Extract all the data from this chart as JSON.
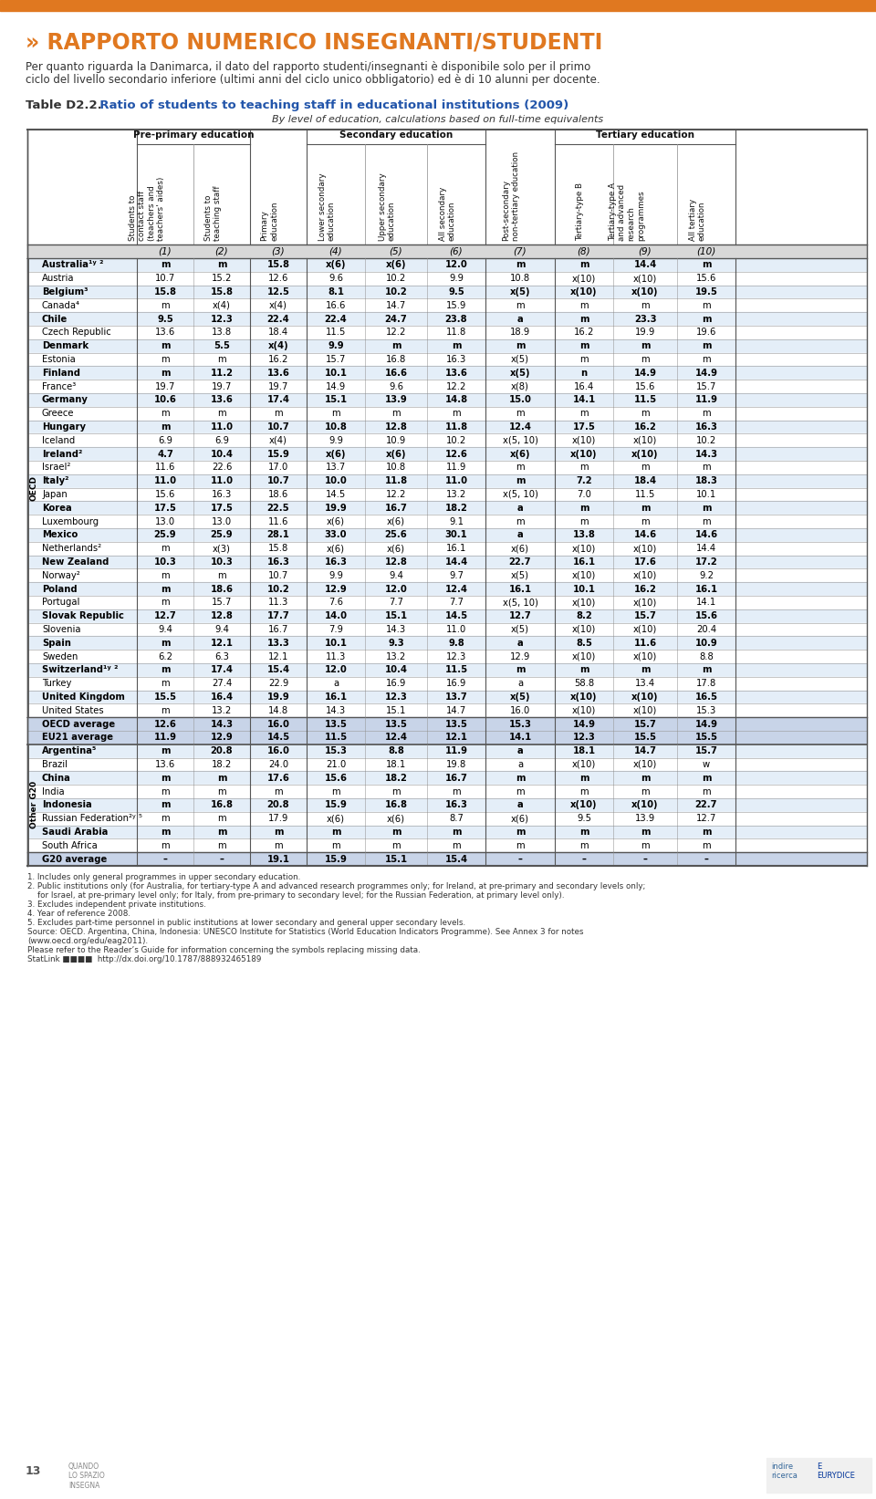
{
  "title_prefix": "Table D2.2.",
  "title_main": "  Ratio of students to teaching staff in educational institutions (2009)",
  "subtitle": "By level of education, calculations based on full-time equivalents",
  "col_headers_rotated": [
    "Students to\ncontact staff\n(teachers and\nteachers' aides)",
    "Students to\nteaching staff",
    "Primary\neducation",
    "Lower secondary\neducation",
    "Upper secondary\neducation",
    "All secondary\neducation",
    "Post-secondary\nnon-tertiary education",
    "Tertiary-type B",
    "Tertiary-type A\nand advanced\nresearch\nprogrammes",
    "All tertiary\neducation"
  ],
  "col_numbers": [
    "(1)",
    "(2)",
    "(3)",
    "(4)",
    "(5)",
    "(6)",
    "(7)",
    "(8)",
    "(9)",
    "(10)"
  ],
  "countries_oecd": [
    [
      "Australia¹ʸ ²",
      "m",
      "m",
      "15.8",
      "x(6)",
      "x(6)",
      "12.0",
      "m",
      "m",
      "14.4",
      "m"
    ],
    [
      "Austria",
      "10.7",
      "15.2",
      "12.6",
      "9.6",
      "10.2",
      "9.9",
      "10.8",
      "x(10)",
      "x(10)",
      "15.6"
    ],
    [
      "Belgium³",
      "15.8",
      "15.8",
      "12.5",
      "8.1",
      "10.2",
      "9.5",
      "x(5)",
      "x(10)",
      "x(10)",
      "19.5"
    ],
    [
      "Canada⁴",
      "m",
      "x(4)",
      "x(4)",
      "16.6",
      "14.7",
      "15.9",
      "m",
      "m",
      "m",
      "m"
    ],
    [
      "Chile",
      "9.5",
      "12.3",
      "22.4",
      "22.4",
      "24.7",
      "23.8",
      "a",
      "m",
      "23.3",
      "m"
    ],
    [
      "Czech Republic",
      "13.6",
      "13.8",
      "18.4",
      "11.5",
      "12.2",
      "11.8",
      "18.9",
      "16.2",
      "19.9",
      "19.6"
    ],
    [
      "Denmark",
      "m",
      "5.5",
      "x(4)",
      "9.9",
      "m",
      "m",
      "m",
      "m",
      "m",
      "m"
    ],
    [
      "Estonia",
      "m",
      "m",
      "16.2",
      "15.7",
      "16.8",
      "16.3",
      "x(5)",
      "m",
      "m",
      "m"
    ],
    [
      "Finland",
      "m",
      "11.2",
      "13.6",
      "10.1",
      "16.6",
      "13.6",
      "x(5)",
      "n",
      "14.9",
      "14.9"
    ],
    [
      "France³",
      "19.7",
      "19.7",
      "19.7",
      "14.9",
      "9.6",
      "12.2",
      "x(8)",
      "16.4",
      "15.6",
      "15.7"
    ],
    [
      "Germany",
      "10.6",
      "13.6",
      "17.4",
      "15.1",
      "13.9",
      "14.8",
      "15.0",
      "14.1",
      "11.5",
      "11.9"
    ],
    [
      "Greece",
      "m",
      "m",
      "m",
      "m",
      "m",
      "m",
      "m",
      "m",
      "m",
      "m"
    ],
    [
      "Hungary",
      "m",
      "11.0",
      "10.7",
      "10.8",
      "12.8",
      "11.8",
      "12.4",
      "17.5",
      "16.2",
      "16.3"
    ],
    [
      "Iceland",
      "6.9",
      "6.9",
      "x(4)",
      "9.9",
      "10.9",
      "10.2",
      "x(5, 10)",
      "x(10)",
      "x(10)",
      "10.2"
    ],
    [
      "Ireland²",
      "4.7",
      "10.4",
      "15.9",
      "x(6)",
      "x(6)",
      "12.6",
      "x(6)",
      "x(10)",
      "x(10)",
      "14.3"
    ],
    [
      "Israel²",
      "11.6",
      "22.6",
      "17.0",
      "13.7",
      "10.8",
      "11.9",
      "m",
      "m",
      "m",
      "m"
    ],
    [
      "Italy²",
      "11.0",
      "11.0",
      "10.7",
      "10.0",
      "11.8",
      "11.0",
      "m",
      "7.2",
      "18.4",
      "18.3"
    ],
    [
      "Japan",
      "15.6",
      "16.3",
      "18.6",
      "14.5",
      "12.2",
      "13.2",
      "x(5, 10)",
      "7.0",
      "11.5",
      "10.1"
    ],
    [
      "Korea",
      "17.5",
      "17.5",
      "22.5",
      "19.9",
      "16.7",
      "18.2",
      "a",
      "m",
      "m",
      "m"
    ],
    [
      "Luxembourg",
      "13.0",
      "13.0",
      "11.6",
      "x(6)",
      "x(6)",
      "9.1",
      "m",
      "m",
      "m",
      "m"
    ],
    [
      "Mexico",
      "25.9",
      "25.9",
      "28.1",
      "33.0",
      "25.6",
      "30.1",
      "a",
      "13.8",
      "14.6",
      "14.6"
    ],
    [
      "Netherlands²",
      "m",
      "x(3)",
      "15.8",
      "x(6)",
      "x(6)",
      "16.1",
      "x(6)",
      "x(10)",
      "x(10)",
      "14.4"
    ],
    [
      "New Zealand",
      "10.3",
      "10.3",
      "16.3",
      "16.3",
      "12.8",
      "14.4",
      "22.7",
      "16.1",
      "17.6",
      "17.2"
    ],
    [
      "Norway²",
      "m",
      "m",
      "10.7",
      "9.9",
      "9.4",
      "9.7",
      "x(5)",
      "x(10)",
      "x(10)",
      "9.2"
    ],
    [
      "Poland",
      "m",
      "18.6",
      "10.2",
      "12.9",
      "12.0",
      "12.4",
      "16.1",
      "10.1",
      "16.2",
      "16.1"
    ],
    [
      "Portugal",
      "m",
      "15.7",
      "11.3",
      "7.6",
      "7.7",
      "7.7",
      "x(5, 10)",
      "x(10)",
      "x(10)",
      "14.1"
    ],
    [
      "Slovak Republic",
      "12.7",
      "12.8",
      "17.7",
      "14.0",
      "15.1",
      "14.5",
      "12.7",
      "8.2",
      "15.7",
      "15.6"
    ],
    [
      "Slovenia",
      "9.4",
      "9.4",
      "16.7",
      "7.9",
      "14.3",
      "11.0",
      "x(5)",
      "x(10)",
      "x(10)",
      "20.4"
    ],
    [
      "Spain",
      "m",
      "12.1",
      "13.3",
      "10.1",
      "9.3",
      "9.8",
      "a",
      "8.5",
      "11.6",
      "10.9"
    ],
    [
      "Sweden",
      "6.2",
      "6.3",
      "12.1",
      "11.3",
      "13.2",
      "12.3",
      "12.9",
      "x(10)",
      "x(10)",
      "8.8"
    ],
    [
      "Switzerland¹ʸ ²",
      "m",
      "17.4",
      "15.4",
      "12.0",
      "10.4",
      "11.5",
      "m",
      "m",
      "m",
      "m"
    ],
    [
      "Turkey",
      "m",
      "27.4",
      "22.9",
      "a",
      "16.9",
      "16.9",
      "a",
      "58.8",
      "13.4",
      "17.8"
    ],
    [
      "United Kingdom",
      "15.5",
      "16.4",
      "19.9",
      "16.1",
      "12.3",
      "13.7",
      "x(5)",
      "x(10)",
      "x(10)",
      "16.5"
    ],
    [
      "United States",
      "m",
      "13.2",
      "14.8",
      "14.3",
      "15.1",
      "14.7",
      "16.0",
      "x(10)",
      "x(10)",
      "15.3"
    ]
  ],
  "averages": [
    [
      "OECD average",
      "12.6",
      "14.3",
      "16.0",
      "13.5",
      "13.5",
      "13.5",
      "15.3",
      "14.9",
      "15.7",
      "14.9"
    ],
    [
      "EU21 average",
      "11.9",
      "12.9",
      "14.5",
      "11.5",
      "12.4",
      "12.1",
      "14.1",
      "12.3",
      "15.5",
      "15.5"
    ]
  ],
  "countries_g20": [
    [
      "Argentina⁵",
      "m",
      "20.8",
      "16.0",
      "15.3",
      "8.8",
      "11.9",
      "a",
      "18.1",
      "14.7",
      "15.7"
    ],
    [
      "Brazil",
      "13.6",
      "18.2",
      "24.0",
      "21.0",
      "18.1",
      "19.8",
      "a",
      "x(10)",
      "x(10)",
      "w"
    ],
    [
      "China",
      "m",
      "m",
      "17.6",
      "15.6",
      "18.2",
      "16.7",
      "m",
      "m",
      "m",
      "m"
    ],
    [
      "India",
      "m",
      "m",
      "m",
      "m",
      "m",
      "m",
      "m",
      "m",
      "m",
      "m"
    ],
    [
      "Indonesia",
      "m",
      "16.8",
      "20.8",
      "15.9",
      "16.8",
      "16.3",
      "a",
      "x(10)",
      "x(10)",
      "22.7"
    ],
    [
      "Russian Federation²ʸ ⁵",
      "m",
      "m",
      "17.9",
      "x(6)",
      "x(6)",
      "8.7",
      "x(6)",
      "9.5",
      "13.9",
      "12.7"
    ],
    [
      "Saudi Arabia",
      "m",
      "m",
      "m",
      "m",
      "m",
      "m",
      "m",
      "m",
      "m",
      "m"
    ],
    [
      "South Africa",
      "m",
      "m",
      "m",
      "m",
      "m",
      "m",
      "m",
      "m",
      "m",
      "m"
    ]
  ],
  "g20_average": [
    "G20 average",
    "–",
    "–",
    "19.1",
    "15.9",
    "15.1",
    "15.4",
    "–",
    "–",
    "–",
    "–"
  ],
  "footnotes": [
    "1. Includes only general programmes in upper secondary education.",
    "2. Public institutions only (for Australia, for tertiary-type A and advanced research programmes only; for Ireland, at pre-primary and secondary levels only;",
    "    for Israel, at pre-primary level only; for Italy, from pre-primary to secondary level; for the Russian Federation, at primary level only).",
    "3. Excludes independent private institutions.",
    "4. Year of reference 2008.",
    "5. Excludes part-time personnel in public institutions at lower secondary and general upper secondary levels.",
    "Source: OECD. Argentina, China, Indonesia: UNESCO Institute for Statistics (World Education Indicators Programme). See Annex 3 for notes",
    "(www.oecd.org/edu/eag2011).",
    "Please refer to the Reader’s Guide for information concerning the symbols replacing missing data.",
    "StatLink ■■■■  http://dx.doi.org/10.1787/888932465189"
  ],
  "bg_color_header": "#D8D8D8",
  "bg_color_oecd_row": "#E4EEF8",
  "bg_color_white": "#FFFFFF",
  "bg_color_avg": "#C8D4E8",
  "orange_bar_color": "#E07820",
  "title_color": "#2255AA",
  "page_bg": "#FFFFFF",
  "intro_text_line1": "Per quanto riguarda la Danimarca, il dato del rapporto studenti/insegnanti è disponibile solo per il primo",
  "intro_text_line2": "ciclo del livello secondario inferiore (ultimi anni del ciclo unico obbligatorio) ed è di 10 alunni per docente."
}
